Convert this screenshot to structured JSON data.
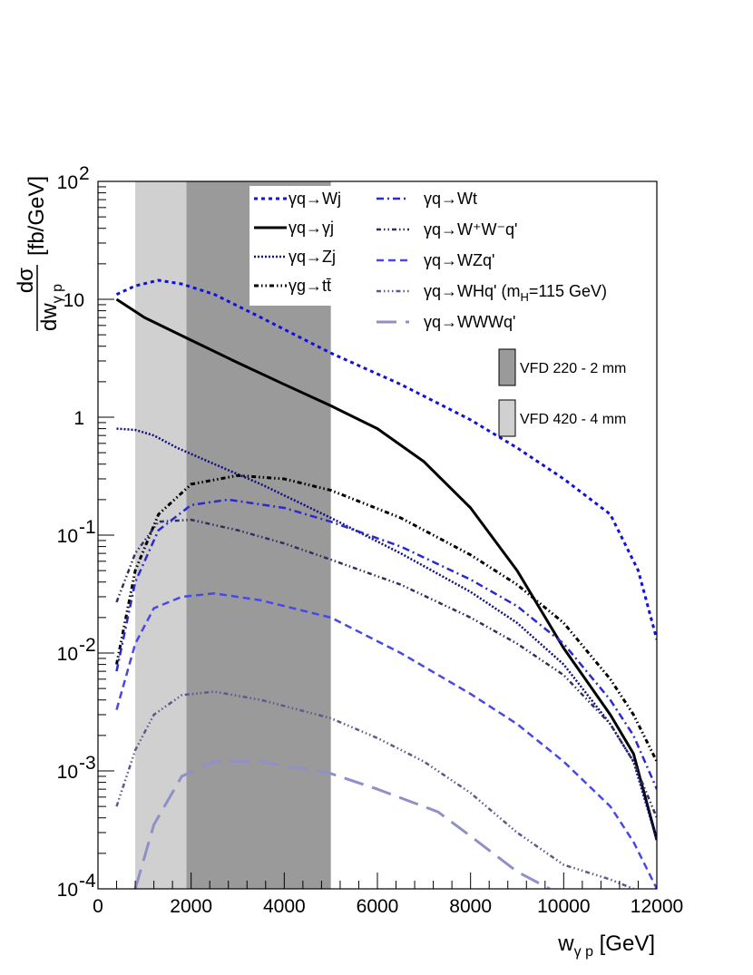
{
  "chart_data": {
    "type": "line",
    "xlabel": "w",
    "xlabel_sub": "γ p",
    "xlabel_unit": "[GeV]",
    "ylabel": {
      "numerator": "dσ",
      "denominator": "dw",
      "denominator_sub": "γ p",
      "unit": "[fb/GeV]"
    },
    "xlim": [
      0,
      12000
    ],
    "ylim": [
      0.0001,
      100
    ],
    "yscale": "log",
    "grid": false,
    "x_ticks": [
      "0",
      "2000",
      "4000",
      "6000",
      "8000",
      "10000",
      "12000"
    ],
    "y_ticks": [
      {
        "base": "10",
        "exp": "-4"
      },
      {
        "base": "10",
        "exp": "-3"
      },
      {
        "base": "10",
        "exp": "-2"
      },
      {
        "base": "10",
        "exp": "-1"
      },
      {
        "base": "1",
        "exp": ""
      },
      {
        "base": "10",
        "exp": ""
      },
      {
        "base": "10",
        "exp": "2"
      }
    ],
    "bands": [
      {
        "name": "VFD 420 - 4 mm",
        "x0": 800,
        "x1": 1900,
        "color": "#d0d0d0"
      },
      {
        "name": "VFD 220 - 2 mm",
        "x0": 1900,
        "x1": 5000,
        "color": "#9a9a9a"
      }
    ],
    "legend_position": "top-right",
    "series": [
      {
        "name": "γq→Wj",
        "color": "#1010e0",
        "dash": "4,4",
        "width": 3,
        "x": [
          400,
          800,
          1300,
          1800,
          2500,
          3500,
          5000,
          6500,
          8000,
          9000,
          10000,
          11000,
          11600,
          12000
        ],
        "y": [
          11,
          13,
          14.5,
          13.5,
          11,
          7,
          3.5,
          1.9,
          0.95,
          0.55,
          0.3,
          0.15,
          0.05,
          0.013
        ]
      },
      {
        "name": "γq→γj",
        "color": "#000000",
        "dash": "",
        "width": 3,
        "x": [
          400,
          1000,
          2000,
          3000,
          4000,
          5000,
          6000,
          7000,
          8000,
          9000,
          10000,
          11000,
          11500,
          12000
        ],
        "y": [
          10,
          7,
          4.5,
          2.9,
          1.9,
          1.25,
          0.8,
          0.42,
          0.17,
          0.05,
          0.011,
          0.003,
          0.0014,
          0.00026
        ]
      },
      {
        "name": "γq→Zj",
        "color": "#101080",
        "dash": "2,2",
        "width": 2.5,
        "x": [
          400,
          800,
          1200,
          1700,
          2500,
          3500,
          5000,
          6500,
          8000,
          9000,
          10000,
          11000,
          11500,
          12000
        ],
        "y": [
          0.8,
          0.78,
          0.7,
          0.55,
          0.4,
          0.27,
          0.14,
          0.07,
          0.033,
          0.018,
          0.008,
          0.0025,
          0.0012,
          0.00026
        ]
      },
      {
        "name": "γg→tt̄",
        "color": "#000000",
        "dash": "5,3,1.5,3,1.5,3",
        "width": 3,
        "x": [
          400,
          800,
          1300,
          2000,
          3000,
          4000,
          5000,
          6500,
          8000,
          9000,
          10000,
          11000,
          11500,
          12000
        ],
        "y": [
          0.008,
          0.05,
          0.15,
          0.27,
          0.32,
          0.3,
          0.24,
          0.14,
          0.068,
          0.038,
          0.018,
          0.006,
          0.003,
          0.0012
        ]
      },
      {
        "name": "γq→Wt",
        "color": "#2a2ad0",
        "dash": "8,4,2,4",
        "width": 2.5,
        "x": [
          400,
          800,
          1300,
          2000,
          2800,
          4000,
          5000,
          6500,
          8000,
          9000,
          10000,
          11000,
          11500,
          12000
        ],
        "y": [
          0.007,
          0.04,
          0.11,
          0.18,
          0.2,
          0.17,
          0.13,
          0.08,
          0.042,
          0.025,
          0.012,
          0.004,
          0.002,
          0.0007
        ]
      },
      {
        "name": "γq→W⁺W⁻q'",
        "color": "#303060",
        "dash": "5,3,1.5,3,1.5,3",
        "width": 2.5,
        "x": [
          400,
          800,
          1300,
          2000,
          3000,
          4000,
          5000,
          6500,
          8000,
          9000,
          10000,
          11000,
          11500,
          12000
        ],
        "y": [
          0.027,
          0.07,
          0.13,
          0.135,
          0.11,
          0.085,
          0.062,
          0.038,
          0.02,
          0.012,
          0.0065,
          0.0025,
          0.0012,
          0.0004
        ]
      },
      {
        "name": "γq→WZq'",
        "color": "#4848e8",
        "dash": "8,5",
        "width": 2.5,
        "x": [
          400,
          800,
          1200,
          1800,
          2500,
          3500,
          5000,
          6500,
          8000,
          9000,
          10000,
          11000,
          11500,
          12000
        ],
        "y": [
          0.0033,
          0.012,
          0.024,
          0.03,
          0.032,
          0.028,
          0.02,
          0.01,
          0.0045,
          0.0025,
          0.0012,
          0.0005,
          0.00025,
          0.0001
        ]
      },
      {
        "name": "γq→WHq' (m_H=115 GeV)",
        "label_main": "γq→WHq' (m",
        "label_sub": "H",
        "label_tail": "=115 GeV)",
        "color": "#5a5a90",
        "dash": "5,3,1.5,3,1.5,3,1.5,3",
        "width": 2.5,
        "x": [
          400,
          800,
          1200,
          1800,
          2500,
          3500,
          5000,
          6000,
          7000,
          8000,
          9000,
          10000,
          11000,
          11500
        ],
        "y": [
          0.0005,
          0.0015,
          0.003,
          0.0044,
          0.0047,
          0.004,
          0.0028,
          0.0019,
          0.0012,
          0.00065,
          0.0003,
          0.00016,
          0.00012,
          0.0001
        ]
      },
      {
        "name": "γq→WWWq'",
        "color": "#9090c8",
        "dash": "22,10",
        "width": 3,
        "x": [
          800,
          1200,
          1800,
          2500,
          3500,
          5000,
          6000,
          7300,
          8000,
          9000,
          9700
        ],
        "y": [
          0.0001,
          0.00035,
          0.0009,
          0.0012,
          0.0012,
          0.00095,
          0.0007,
          0.00045,
          0.00028,
          0.00014,
          0.0001
        ]
      }
    ]
  }
}
